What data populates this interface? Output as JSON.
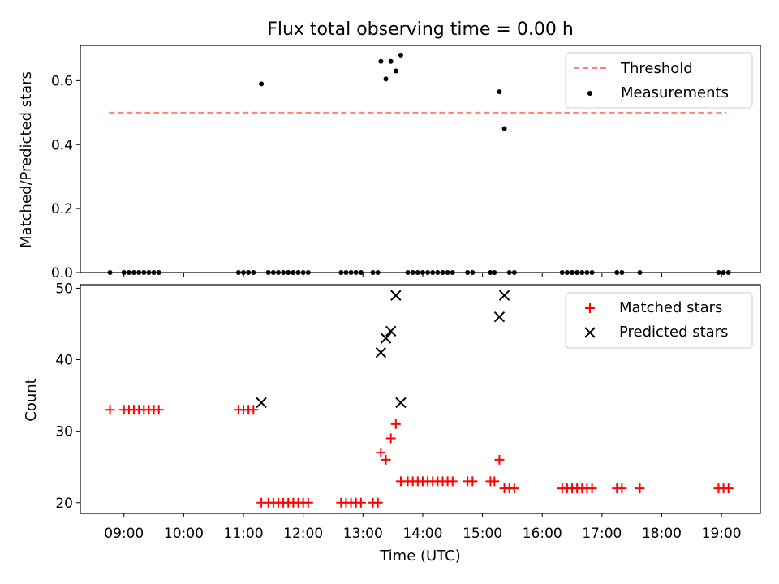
{
  "chart_data": [
    {
      "type": "scatter",
      "title": "Flux total observing time = 0.00 h",
      "xlabel": "",
      "ylabel": "Matched/Predicted stars",
      "ylim": [
        0,
        0.71
      ],
      "yticks": [
        0.0,
        0.2,
        0.4,
        0.6
      ],
      "ytick_labels": [
        "0.0",
        "0.2",
        "0.4",
        "0.6"
      ],
      "x_range_hours": [
        8.27,
        19.65
      ],
      "xticks": [
        9,
        10,
        11,
        12,
        13,
        14,
        15,
        16,
        17,
        18,
        19
      ],
      "legend_position": "upper right",
      "threshold": {
        "name": "Threshold",
        "value": 0.5,
        "x_start": "08:45",
        "x_end": "19:05",
        "color": "#ff7f7f",
        "style": "dashed"
      },
      "series": [
        {
          "name": "Measurements",
          "color": "#000000",
          "marker": "dot",
          "points": [
            [
              "08:46",
              0.0
            ],
            [
              "09:00",
              0.0
            ],
            [
              "09:05",
              0.0
            ],
            [
              "09:10",
              0.0
            ],
            [
              "09:15",
              0.0
            ],
            [
              "09:20",
              0.0
            ],
            [
              "09:25",
              0.0
            ],
            [
              "09:30",
              0.0
            ],
            [
              "09:35",
              0.0
            ],
            [
              "10:55",
              0.0
            ],
            [
              "11:00",
              0.0
            ],
            [
              "11:05",
              0.0
            ],
            [
              "11:10",
              0.0
            ],
            [
              "11:18",
              0.59
            ],
            [
              "11:25",
              0.0
            ],
            [
              "11:30",
              0.0
            ],
            [
              "11:35",
              0.0
            ],
            [
              "11:40",
              0.0
            ],
            [
              "11:45",
              0.0
            ],
            [
              "11:50",
              0.0
            ],
            [
              "11:55",
              0.0
            ],
            [
              "12:00",
              0.0
            ],
            [
              "12:05",
              0.0
            ],
            [
              "12:38",
              0.0
            ],
            [
              "12:43",
              0.0
            ],
            [
              "12:48",
              0.0
            ],
            [
              "12:53",
              0.0
            ],
            [
              "12:58",
              0.0
            ],
            [
              "13:10",
              0.0
            ],
            [
              "13:15",
              0.0
            ],
            [
              "13:18",
              0.66
            ],
            [
              "13:23",
              0.605
            ],
            [
              "13:28",
              0.66
            ],
            [
              "13:33",
              0.63
            ],
            [
              "13:38",
              0.68
            ],
            [
              "13:45",
              0.0
            ],
            [
              "13:50",
              0.0
            ],
            [
              "13:55",
              0.0
            ],
            [
              "14:00",
              0.0
            ],
            [
              "14:05",
              0.0
            ],
            [
              "14:10",
              0.0
            ],
            [
              "14:15",
              0.0
            ],
            [
              "14:20",
              0.0
            ],
            [
              "14:25",
              0.0
            ],
            [
              "14:30",
              0.0
            ],
            [
              "14:45",
              0.0
            ],
            [
              "14:50",
              0.0
            ],
            [
              "15:08",
              0.0
            ],
            [
              "15:12",
              0.0
            ],
            [
              "15:17",
              0.565
            ],
            [
              "15:22",
              0.45
            ],
            [
              "15:27",
              0.0
            ],
            [
              "15:32",
              0.0
            ],
            [
              "16:20",
              0.0
            ],
            [
              "16:25",
              0.0
            ],
            [
              "16:30",
              0.0
            ],
            [
              "16:35",
              0.0
            ],
            [
              "16:40",
              0.0
            ],
            [
              "16:45",
              0.0
            ],
            [
              "16:50",
              0.0
            ],
            [
              "17:15",
              0.0
            ],
            [
              "17:20",
              0.0
            ],
            [
              "17:38",
              0.0
            ],
            [
              "18:57",
              0.0
            ],
            [
              "19:02",
              0.0
            ],
            [
              "19:07",
              0.0
            ]
          ]
        }
      ]
    },
    {
      "type": "scatter",
      "title": "",
      "xlabel": "Time (UTC)",
      "ylabel": "Count",
      "ylim": [
        18.5,
        50.5
      ],
      "yticks": [
        20,
        30,
        40,
        50
      ],
      "ytick_labels": [
        "20",
        "30",
        "40",
        "50"
      ],
      "x_range_hours": [
        8.27,
        19.65
      ],
      "xticks": [
        9,
        10,
        11,
        12,
        13,
        14,
        15,
        16,
        17,
        18,
        19
      ],
      "xtick_labels": [
        "09:00",
        "10:00",
        "11:00",
        "12:00",
        "13:00",
        "14:00",
        "15:00",
        "16:00",
        "17:00",
        "18:00",
        "19:00"
      ],
      "legend_position": "upper right",
      "series": [
        {
          "name": "Matched stars",
          "color": "#ff0000",
          "marker": "plus",
          "points": [
            [
              "08:46",
              33
            ],
            [
              "09:00",
              33
            ],
            [
              "09:05",
              33
            ],
            [
              "09:10",
              33
            ],
            [
              "09:15",
              33
            ],
            [
              "09:20",
              33
            ],
            [
              "09:25",
              33
            ],
            [
              "09:30",
              33
            ],
            [
              "09:35",
              33
            ],
            [
              "10:55",
              33
            ],
            [
              "11:00",
              33
            ],
            [
              "11:05",
              33
            ],
            [
              "11:10",
              33
            ],
            [
              "11:18",
              20
            ],
            [
              "11:25",
              20
            ],
            [
              "11:30",
              20
            ],
            [
              "11:35",
              20
            ],
            [
              "11:40",
              20
            ],
            [
              "11:45",
              20
            ],
            [
              "11:50",
              20
            ],
            [
              "11:55",
              20
            ],
            [
              "12:00",
              20
            ],
            [
              "12:05",
              20
            ],
            [
              "12:38",
              20
            ],
            [
              "12:43",
              20
            ],
            [
              "12:48",
              20
            ],
            [
              "12:53",
              20
            ],
            [
              "12:58",
              20
            ],
            [
              "13:10",
              20
            ],
            [
              "13:15",
              20
            ],
            [
              "13:18",
              27
            ],
            [
              "13:23",
              26
            ],
            [
              "13:28",
              29
            ],
            [
              "13:33",
              31
            ],
            [
              "13:38",
              23
            ],
            [
              "13:45",
              23
            ],
            [
              "13:50",
              23
            ],
            [
              "13:55",
              23
            ],
            [
              "14:00",
              23
            ],
            [
              "14:05",
              23
            ],
            [
              "14:10",
              23
            ],
            [
              "14:15",
              23
            ],
            [
              "14:20",
              23
            ],
            [
              "14:25",
              23
            ],
            [
              "14:30",
              23
            ],
            [
              "14:45",
              23
            ],
            [
              "14:50",
              23
            ],
            [
              "15:08",
              23
            ],
            [
              "15:12",
              23
            ],
            [
              "15:17",
              26
            ],
            [
              "15:22",
              22
            ],
            [
              "15:27",
              22
            ],
            [
              "15:32",
              22
            ],
            [
              "16:20",
              22
            ],
            [
              "16:25",
              22
            ],
            [
              "16:30",
              22
            ],
            [
              "16:35",
              22
            ],
            [
              "16:40",
              22
            ],
            [
              "16:45",
              22
            ],
            [
              "16:50",
              22
            ],
            [
              "17:15",
              22
            ],
            [
              "17:20",
              22
            ],
            [
              "17:38",
              22
            ],
            [
              "18:57",
              22
            ],
            [
              "19:02",
              22
            ],
            [
              "19:07",
              22
            ]
          ]
        },
        {
          "name": "Predicted stars",
          "color": "#000000",
          "marker": "x",
          "points": [
            [
              "11:18",
              34
            ],
            [
              "13:18",
              41
            ],
            [
              "13:23",
              43
            ],
            [
              "13:28",
              44
            ],
            [
              "13:33",
              49
            ],
            [
              "13:38",
              34
            ],
            [
              "15:17",
              46
            ],
            [
              "15:22",
              49
            ]
          ]
        }
      ]
    }
  ]
}
